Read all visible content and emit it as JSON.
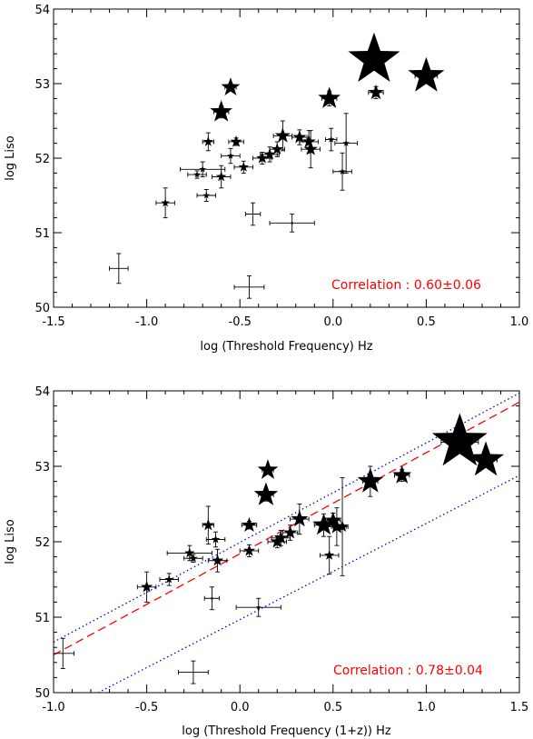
{
  "chart_data": [
    {
      "type": "scatter",
      "xlabel": "log (Threshold Frequency) Hz",
      "ylabel": "log Liso",
      "xlim": [
        -1.5,
        1.0
      ],
      "ylim": [
        50,
        54
      ],
      "xticks": [
        "-1.5",
        "-1.0",
        "-0.5",
        "0.0",
        "0.5",
        "1.0"
      ],
      "yticks": [
        "50",
        "51",
        "52",
        "53",
        "54"
      ],
      "annotation": "Correlation : 0.60±0.06",
      "annotation_color": "#ff0000",
      "marker": "star",
      "points": [
        {
          "x": -1.15,
          "y": 50.52,
          "xerr": 0.05,
          "yerr": 0.2,
          "size": 1
        },
        {
          "x": -0.45,
          "y": 50.27,
          "xerr": 0.08,
          "yerr": 0.15,
          "size": 1
        },
        {
          "x": -0.43,
          "y": 51.25,
          "xerr": 0.04,
          "yerr": 0.15,
          "size": 1
        },
        {
          "x": -0.22,
          "y": 51.13,
          "xerr": 0.12,
          "yerr": 0.12,
          "size": 2
        },
        {
          "x": -0.9,
          "y": 51.4,
          "xerr": 0.05,
          "yerr": 0.2,
          "size": 5
        },
        {
          "x": -0.68,
          "y": 51.5,
          "xerr": 0.05,
          "yerr": 0.08,
          "size": 4
        },
        {
          "x": -0.73,
          "y": 51.78,
          "xerr": 0.05,
          "yerr": 0.05,
          "size": 4
        },
        {
          "x": -0.7,
          "y": 51.85,
          "xerr": 0.12,
          "yerr": 0.1,
          "size": 4
        },
        {
          "x": -0.6,
          "y": 51.75,
          "xerr": 0.05,
          "yerr": 0.15,
          "size": 6
        },
        {
          "x": -0.55,
          "y": 52.03,
          "xerr": 0.05,
          "yerr": 0.1,
          "size": 4
        },
        {
          "x": -0.48,
          "y": 51.88,
          "xerr": 0.05,
          "yerr": 0.08,
          "size": 6
        },
        {
          "x": -0.52,
          "y": 52.22,
          "xerr": 0.04,
          "yerr": 0.05,
          "size": 7
        },
        {
          "x": -0.67,
          "y": 52.22,
          "xerr": 0.03,
          "yerr": 0.12,
          "size": 6
        },
        {
          "x": -0.38,
          "y": 52.0,
          "xerr": 0.05,
          "yerr": 0.08,
          "size": 7
        },
        {
          "x": -0.34,
          "y": 52.05,
          "xerr": 0.05,
          "yerr": 0.1,
          "size": 7
        },
        {
          "x": -0.3,
          "y": 52.12,
          "xerr": 0.04,
          "yerr": 0.1,
          "size": 7
        },
        {
          "x": -0.27,
          "y": 52.3,
          "xerr": 0.05,
          "yerr": 0.2,
          "size": 9
        },
        {
          "x": -0.18,
          "y": 52.28,
          "xerr": 0.04,
          "yerr": 0.1,
          "size": 8
        },
        {
          "x": -0.13,
          "y": 52.22,
          "xerr": 0.05,
          "yerr": 0.15,
          "size": 8
        },
        {
          "x": -0.12,
          "y": 52.12,
          "xerr": 0.05,
          "yerr": 0.25,
          "size": 8
        },
        {
          "x": -0.01,
          "y": 52.25,
          "xerr": 0.03,
          "yerr": 0.15,
          "size": 4
        },
        {
          "x": 0.05,
          "y": 51.82,
          "xerr": 0.05,
          "yerr": 0.25,
          "size": 4
        },
        {
          "x": 0.07,
          "y": 52.2,
          "xerr": 0.06,
          "yerr": 0.4,
          "size": 4
        },
        {
          "x": -0.6,
          "y": 52.62,
          "xerr": 0.04,
          "yerr": 0.08,
          "size": 13
        },
        {
          "x": -0.55,
          "y": 52.95,
          "xerr": 0.03,
          "yerr": 0.05,
          "size": 11
        },
        {
          "x": -0.02,
          "y": 52.8,
          "xerr": 0.04,
          "yerr": 0.1,
          "size": 13
        },
        {
          "x": 0.23,
          "y": 52.88,
          "xerr": 0.04,
          "yerr": 0.08,
          "size": 9
        },
        {
          "x": 0.22,
          "y": 53.32,
          "xerr": 0.06,
          "yerr": 0.08,
          "size": 30
        },
        {
          "x": 0.5,
          "y": 53.1,
          "xerr": 0.06,
          "yerr": 0.08,
          "size": 21
        }
      ]
    },
    {
      "type": "scatter",
      "xlabel": "log (Threshold Frequency (1+z)) Hz",
      "ylabel": "log Liso",
      "xlim": [
        -1.0,
        1.5
      ],
      "ylim": [
        50,
        54
      ],
      "xticks": [
        "-1.0",
        "-0.5",
        "0.0",
        "0.5",
        "1.0",
        "1.5"
      ],
      "yticks": [
        "50",
        "51",
        "52",
        "53",
        "54"
      ],
      "annotation": "Correlation : 0.78±0.04",
      "annotation_color": "#ff0000",
      "marker": "star",
      "fit_line": {
        "x": [
          -1.0,
          1.5
        ],
        "y": [
          50.5,
          53.85
        ],
        "color": "#ff0000",
        "style": "dashed"
      },
      "bound_lines": [
        {
          "x": [
            -1.0,
            1.5
          ],
          "y": [
            50.67,
            53.97
          ],
          "color": "#0000cc",
          "style": "dotted"
        },
        {
          "x": [
            -0.8,
            1.5
          ],
          "y": [
            49.95,
            52.88
          ],
          "color": "#0000cc",
          "style": "dotted"
        }
      ],
      "points": [
        {
          "x": -0.95,
          "y": 50.52,
          "xerr": 0.06,
          "yerr": 0.2,
          "size": 1
        },
        {
          "x": -0.25,
          "y": 50.27,
          "xerr": 0.08,
          "yerr": 0.15,
          "size": 1
        },
        {
          "x": -0.15,
          "y": 51.25,
          "xerr": 0.04,
          "yerr": 0.15,
          "size": 2
        },
        {
          "x": 0.1,
          "y": 51.13,
          "xerr": 0.12,
          "yerr": 0.12,
          "size": 3
        },
        {
          "x": -0.5,
          "y": 51.4,
          "xerr": 0.05,
          "yerr": 0.2,
          "size": 7
        },
        {
          "x": -0.38,
          "y": 51.5,
          "xerr": 0.05,
          "yerr": 0.08,
          "size": 5
        },
        {
          "x": -0.25,
          "y": 51.78,
          "xerr": 0.05,
          "yerr": 0.05,
          "size": 5
        },
        {
          "x": -0.27,
          "y": 51.85,
          "xerr": 0.12,
          "yerr": 0.1,
          "size": 6
        },
        {
          "x": -0.12,
          "y": 51.75,
          "xerr": 0.05,
          "yerr": 0.15,
          "size": 7
        },
        {
          "x": -0.13,
          "y": 52.03,
          "xerr": 0.05,
          "yerr": 0.1,
          "size": 5
        },
        {
          "x": 0.05,
          "y": 51.88,
          "xerr": 0.05,
          "yerr": 0.08,
          "size": 7
        },
        {
          "x": 0.05,
          "y": 52.22,
          "xerr": 0.04,
          "yerr": 0.05,
          "size": 9
        },
        {
          "x": -0.17,
          "y": 52.22,
          "xerr": 0.03,
          "yerr": 0.25,
          "size": 7
        },
        {
          "x": 0.2,
          "y": 52.0,
          "xerr": 0.05,
          "yerr": 0.08,
          "size": 8
        },
        {
          "x": 0.22,
          "y": 52.05,
          "xerr": 0.05,
          "yerr": 0.1,
          "size": 8
        },
        {
          "x": 0.27,
          "y": 52.12,
          "xerr": 0.04,
          "yerr": 0.1,
          "size": 8
        },
        {
          "x": 0.32,
          "y": 52.3,
          "xerr": 0.05,
          "yerr": 0.2,
          "size": 10
        },
        {
          "x": 0.45,
          "y": 52.22,
          "xerr": 0.05,
          "yerr": 0.15,
          "size": 13
        },
        {
          "x": 0.5,
          "y": 52.28,
          "xerr": 0.04,
          "yerr": 0.1,
          "size": 10
        },
        {
          "x": 0.52,
          "y": 52.2,
          "xerr": 0.05,
          "yerr": 0.25,
          "size": 9
        },
        {
          "x": 0.55,
          "y": 52.2,
          "xerr": 0.03,
          "yerr": 0.65,
          "size": 7
        },
        {
          "x": 0.48,
          "y": 51.82,
          "xerr": 0.05,
          "yerr": 0.25,
          "size": 6
        },
        {
          "x": 0.14,
          "y": 52.62,
          "xerr": 0.04,
          "yerr": 0.08,
          "size": 14
        },
        {
          "x": 0.15,
          "y": 52.95,
          "xerr": 0.03,
          "yerr": 0.05,
          "size": 12
        },
        {
          "x": 0.7,
          "y": 52.8,
          "xerr": 0.04,
          "yerr": 0.2,
          "size": 15
        },
        {
          "x": 0.87,
          "y": 52.88,
          "xerr": 0.04,
          "yerr": 0.08,
          "size": 11
        },
        {
          "x": 1.18,
          "y": 53.32,
          "xerr": 0.1,
          "yerr": 0.08,
          "size": 32
        },
        {
          "x": 1.32,
          "y": 53.08,
          "xerr": 0.06,
          "yerr": 0.08,
          "size": 21
        }
      ]
    }
  ]
}
